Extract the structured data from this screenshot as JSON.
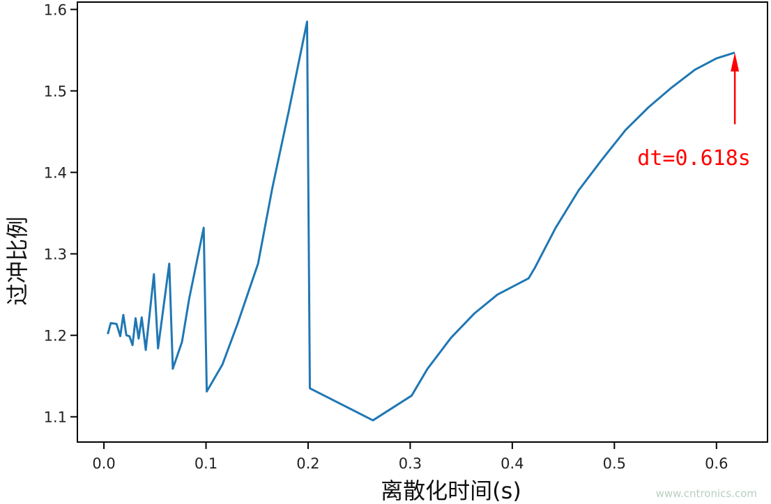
{
  "chart_data": {
    "type": "line",
    "title": "",
    "xlabel": "离散化时间(s)",
    "ylabel": "过冲比例",
    "xlim": [
      -0.026,
      0.65
    ],
    "ylim": [
      1.069,
      1.609
    ],
    "xticks": [
      "0.0",
      "0.1",
      "0.2",
      "0.3",
      "0.4",
      "0.5",
      "0.6"
    ],
    "yticks": [
      "1.1",
      "1.2",
      "1.3",
      "1.4",
      "1.5",
      "1.6"
    ],
    "grid": false,
    "series": [
      {
        "color": "#1f77b4",
        "x": [
          0.0038,
          0.0067,
          0.0124,
          0.016,
          0.019,
          0.022,
          0.025,
          0.028,
          0.031,
          0.034,
          0.037,
          0.041,
          0.049,
          0.053,
          0.064,
          0.0675,
          0.0765,
          0.0835,
          0.0977,
          0.1007,
          0.116,
          0.1307,
          0.151,
          0.165,
          0.181,
          0.199,
          0.2017,
          0.2635,
          0.3014,
          0.317,
          0.34,
          0.363,
          0.3855,
          0.416,
          0.422,
          0.4425,
          0.465,
          0.488,
          0.511,
          0.5335,
          0.556,
          0.579,
          0.6,
          0.618
        ],
        "y": [
          1.2015,
          1.215,
          1.214,
          1.199,
          1.225,
          1.2,
          1.199,
          1.188,
          1.221,
          1.196,
          1.222,
          1.182,
          1.275,
          1.184,
          1.288,
          1.159,
          1.192,
          1.245,
          1.332,
          1.131,
          1.164,
          1.2135,
          1.288,
          1.381,
          1.475,
          1.585,
          1.135,
          1.0957,
          1.126,
          1.159,
          1.197,
          1.227,
          1.25,
          1.27,
          1.2826,
          1.332,
          1.378,
          1.416,
          1.452,
          1.48,
          1.504,
          1.526,
          1.54,
          1.547
        ]
      }
    ],
    "annotation": {
      "text": "dt=0.618s",
      "color": "#ff0000",
      "arrow_tip": [
        0.618,
        1.547
      ],
      "arrow_tail": [
        0.618,
        1.459
      ],
      "text_pos": [
        0.578,
        1.409
      ]
    }
  },
  "watermark": "www.cntronics.com"
}
